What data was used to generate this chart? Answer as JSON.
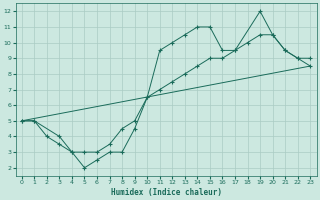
{
  "xlabel": "Humidex (Indice chaleur)",
  "bg_color": "#cce8e0",
  "grid_color": "#aaccc4",
  "line_color": "#1a6b5a",
  "xlim": [
    -0.5,
    23.5
  ],
  "ylim": [
    1.5,
    12.5
  ],
  "xticks": [
    0,
    1,
    2,
    3,
    4,
    5,
    6,
    7,
    8,
    9,
    10,
    11,
    12,
    13,
    14,
    15,
    16,
    17,
    18,
    19,
    20,
    21,
    22,
    23
  ],
  "yticks": [
    2,
    3,
    4,
    5,
    6,
    7,
    8,
    9,
    10,
    11,
    12
  ],
  "line1_x": [
    0,
    1,
    3,
    4,
    5,
    6,
    7,
    8,
    9,
    10,
    11,
    12,
    13,
    14,
    15,
    16,
    17,
    19,
    20,
    21,
    22,
    23
  ],
  "line1_y": [
    5,
    5,
    4,
    3,
    2,
    2.5,
    3,
    3,
    4.5,
    6.5,
    9.5,
    10,
    10.5,
    11,
    11,
    9.5,
    9.5,
    12,
    10.5,
    9.5,
    9,
    9
  ],
  "line2_x": [
    0,
    1,
    2,
    3,
    4,
    5,
    6,
    7,
    8,
    9,
    10,
    11,
    12,
    13,
    14,
    15,
    16,
    17,
    18,
    19,
    20,
    21,
    22,
    23
  ],
  "line2_y": [
    5,
    5,
    4,
    3.5,
    3,
    3,
    3,
    3.5,
    4.5,
    5,
    6.5,
    7,
    7.5,
    8,
    8.5,
    9,
    9,
    9.5,
    10,
    10.5,
    10.5,
    9.5,
    9,
    8.5
  ],
  "line3_x": [
    0,
    23
  ],
  "line3_y": [
    5,
    8.5
  ]
}
